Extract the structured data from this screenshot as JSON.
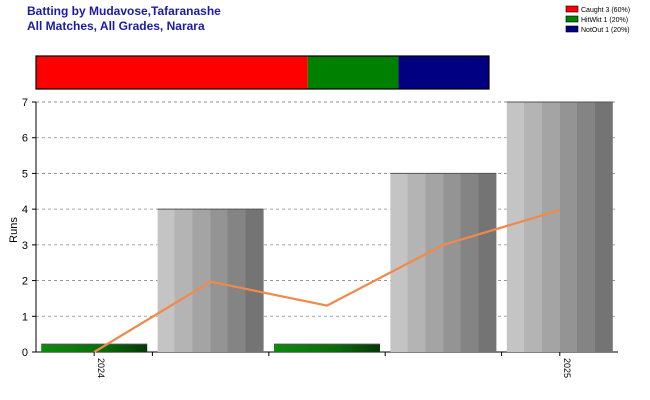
{
  "chart_data": {
    "type": "bar",
    "title_lines": [
      "Batting by Mudavose,Tafaranashe",
      "All Matches, All Grades, Narara"
    ],
    "title_color": "#1a1aa6",
    "ylabel": "Runs",
    "ylim": [
      0,
      7
    ],
    "yticks": [
      0,
      1,
      2,
      3,
      4,
      5,
      6,
      7
    ],
    "grid": true,
    "x_tick_labels": [
      {
        "label": "2024",
        "at_bar": 0
      },
      {
        "label": "2025",
        "at_bar": 4
      }
    ],
    "bars": [
      {
        "value": 0.22,
        "style": "green"
      },
      {
        "value": 4,
        "style": "gray"
      },
      {
        "value": 0.22,
        "style": "green"
      },
      {
        "value": 5,
        "style": "gray"
      },
      {
        "value": 7,
        "style": "gray"
      }
    ],
    "trend_line": {
      "color": "#f0894a",
      "values": [
        0,
        1.97,
        1.3,
        3.0,
        3.97
      ]
    },
    "legend": {
      "position": "top-right",
      "items": [
        {
          "label": "Caught 3 (60%)",
          "color": "#ff0000"
        },
        {
          "label": "HitWkt 1 (20%)",
          "color": "#008000"
        },
        {
          "label": "NotOut 1 (20%)",
          "color": "#000080"
        }
      ]
    },
    "dismissal_bar": [
      {
        "name": "Caught",
        "fraction": 0.6,
        "color": "#ff0000"
      },
      {
        "name": "HitWkt",
        "fraction": 0.2,
        "color": "#008000"
      },
      {
        "name": "NotOut",
        "fraction": 0.2,
        "color": "#000080"
      }
    ]
  }
}
